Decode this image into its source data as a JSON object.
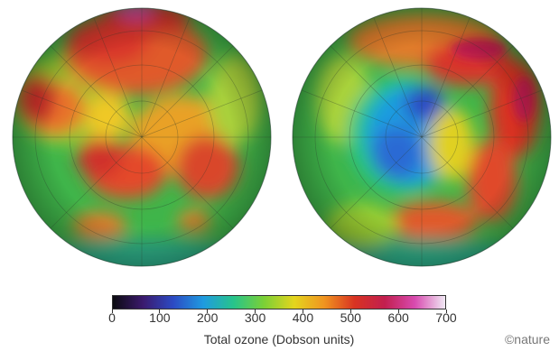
{
  "maps": [
    {
      "name": "globe-left",
      "ozone_pattern": "high"
    },
    {
      "name": "globe-right",
      "ozone_pattern": "hole"
    }
  ],
  "colorbar": {
    "title": "Total ozone (Dobson units)",
    "ticks": [
      "0",
      "100",
      "200",
      "300",
      "400",
      "500",
      "600",
      "700"
    ],
    "range": [
      0,
      700
    ],
    "colors": [
      "#0b0b10",
      "#3b1a6e",
      "#2c4bc4",
      "#1f9be0",
      "#27c48a",
      "#7bd036",
      "#e4d51e",
      "#f09420",
      "#d83322",
      "#c21f4f",
      "#d84bb0",
      "#f0e9f4"
    ]
  },
  "credit": "©nature"
}
